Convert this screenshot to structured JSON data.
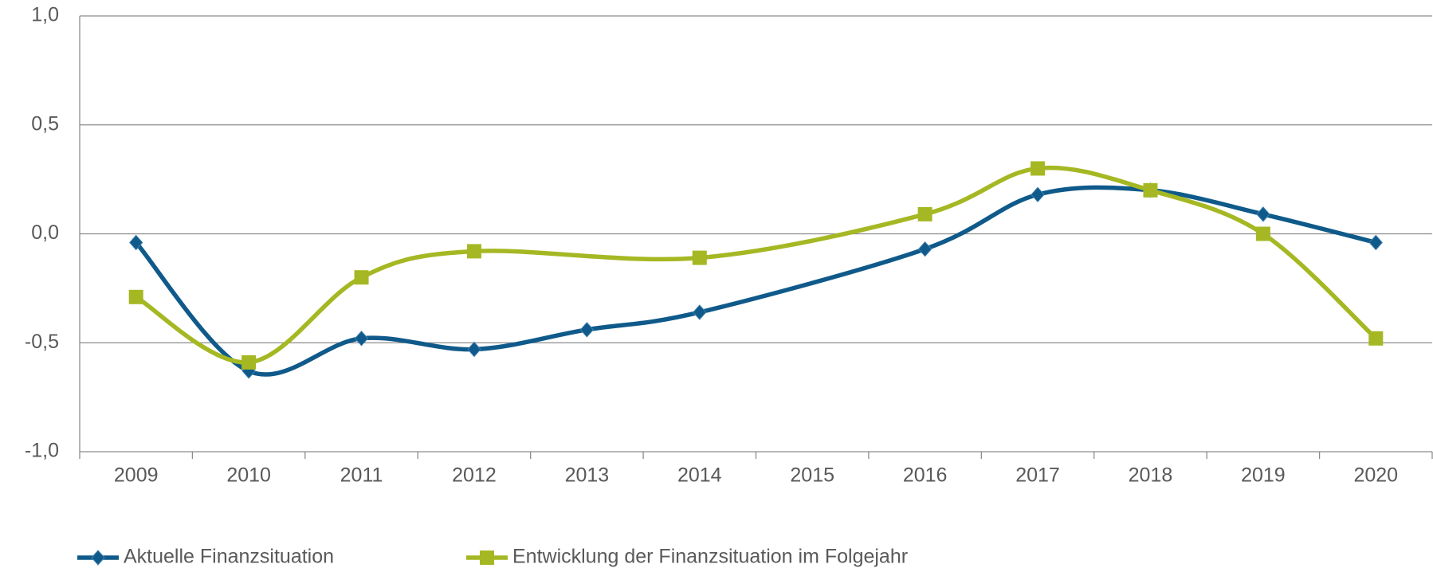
{
  "chart_data": {
    "type": "line",
    "categories": [
      "2009",
      "2010",
      "2011",
      "2012",
      "2013",
      "2014",
      "2015",
      "2016",
      "2017",
      "2018",
      "2019",
      "2020"
    ],
    "series": [
      {
        "name": "Aktuelle Finanzsituation",
        "color": "#0f5a8a",
        "marker": "diamond",
        "values": [
          -0.04,
          -0.63,
          -0.48,
          -0.53,
          -0.44,
          -0.36,
          null,
          -0.07,
          0.18,
          0.2,
          0.09,
          -0.04
        ]
      },
      {
        "name": "Entwicklung der Finanzsituation im Folgejahr",
        "color": "#a5b823",
        "marker": "square",
        "values": [
          -0.29,
          -0.59,
          -0.2,
          -0.08,
          null,
          -0.11,
          null,
          0.09,
          0.3,
          0.2,
          0.0,
          -0.48
        ]
      }
    ],
    "ylim": [
      -1.0,
      1.0
    ],
    "yticks": [
      {
        "value": -1.0,
        "label": "-1,0"
      },
      {
        "value": -0.5,
        "label": "-0,5"
      },
      {
        "value": 0.0,
        "label": "0,0"
      },
      {
        "value": 0.5,
        "label": "0,5"
      },
      {
        "value": 1.0,
        "label": "1,0"
      }
    ],
    "grid": true,
    "legend": "bottom"
  }
}
